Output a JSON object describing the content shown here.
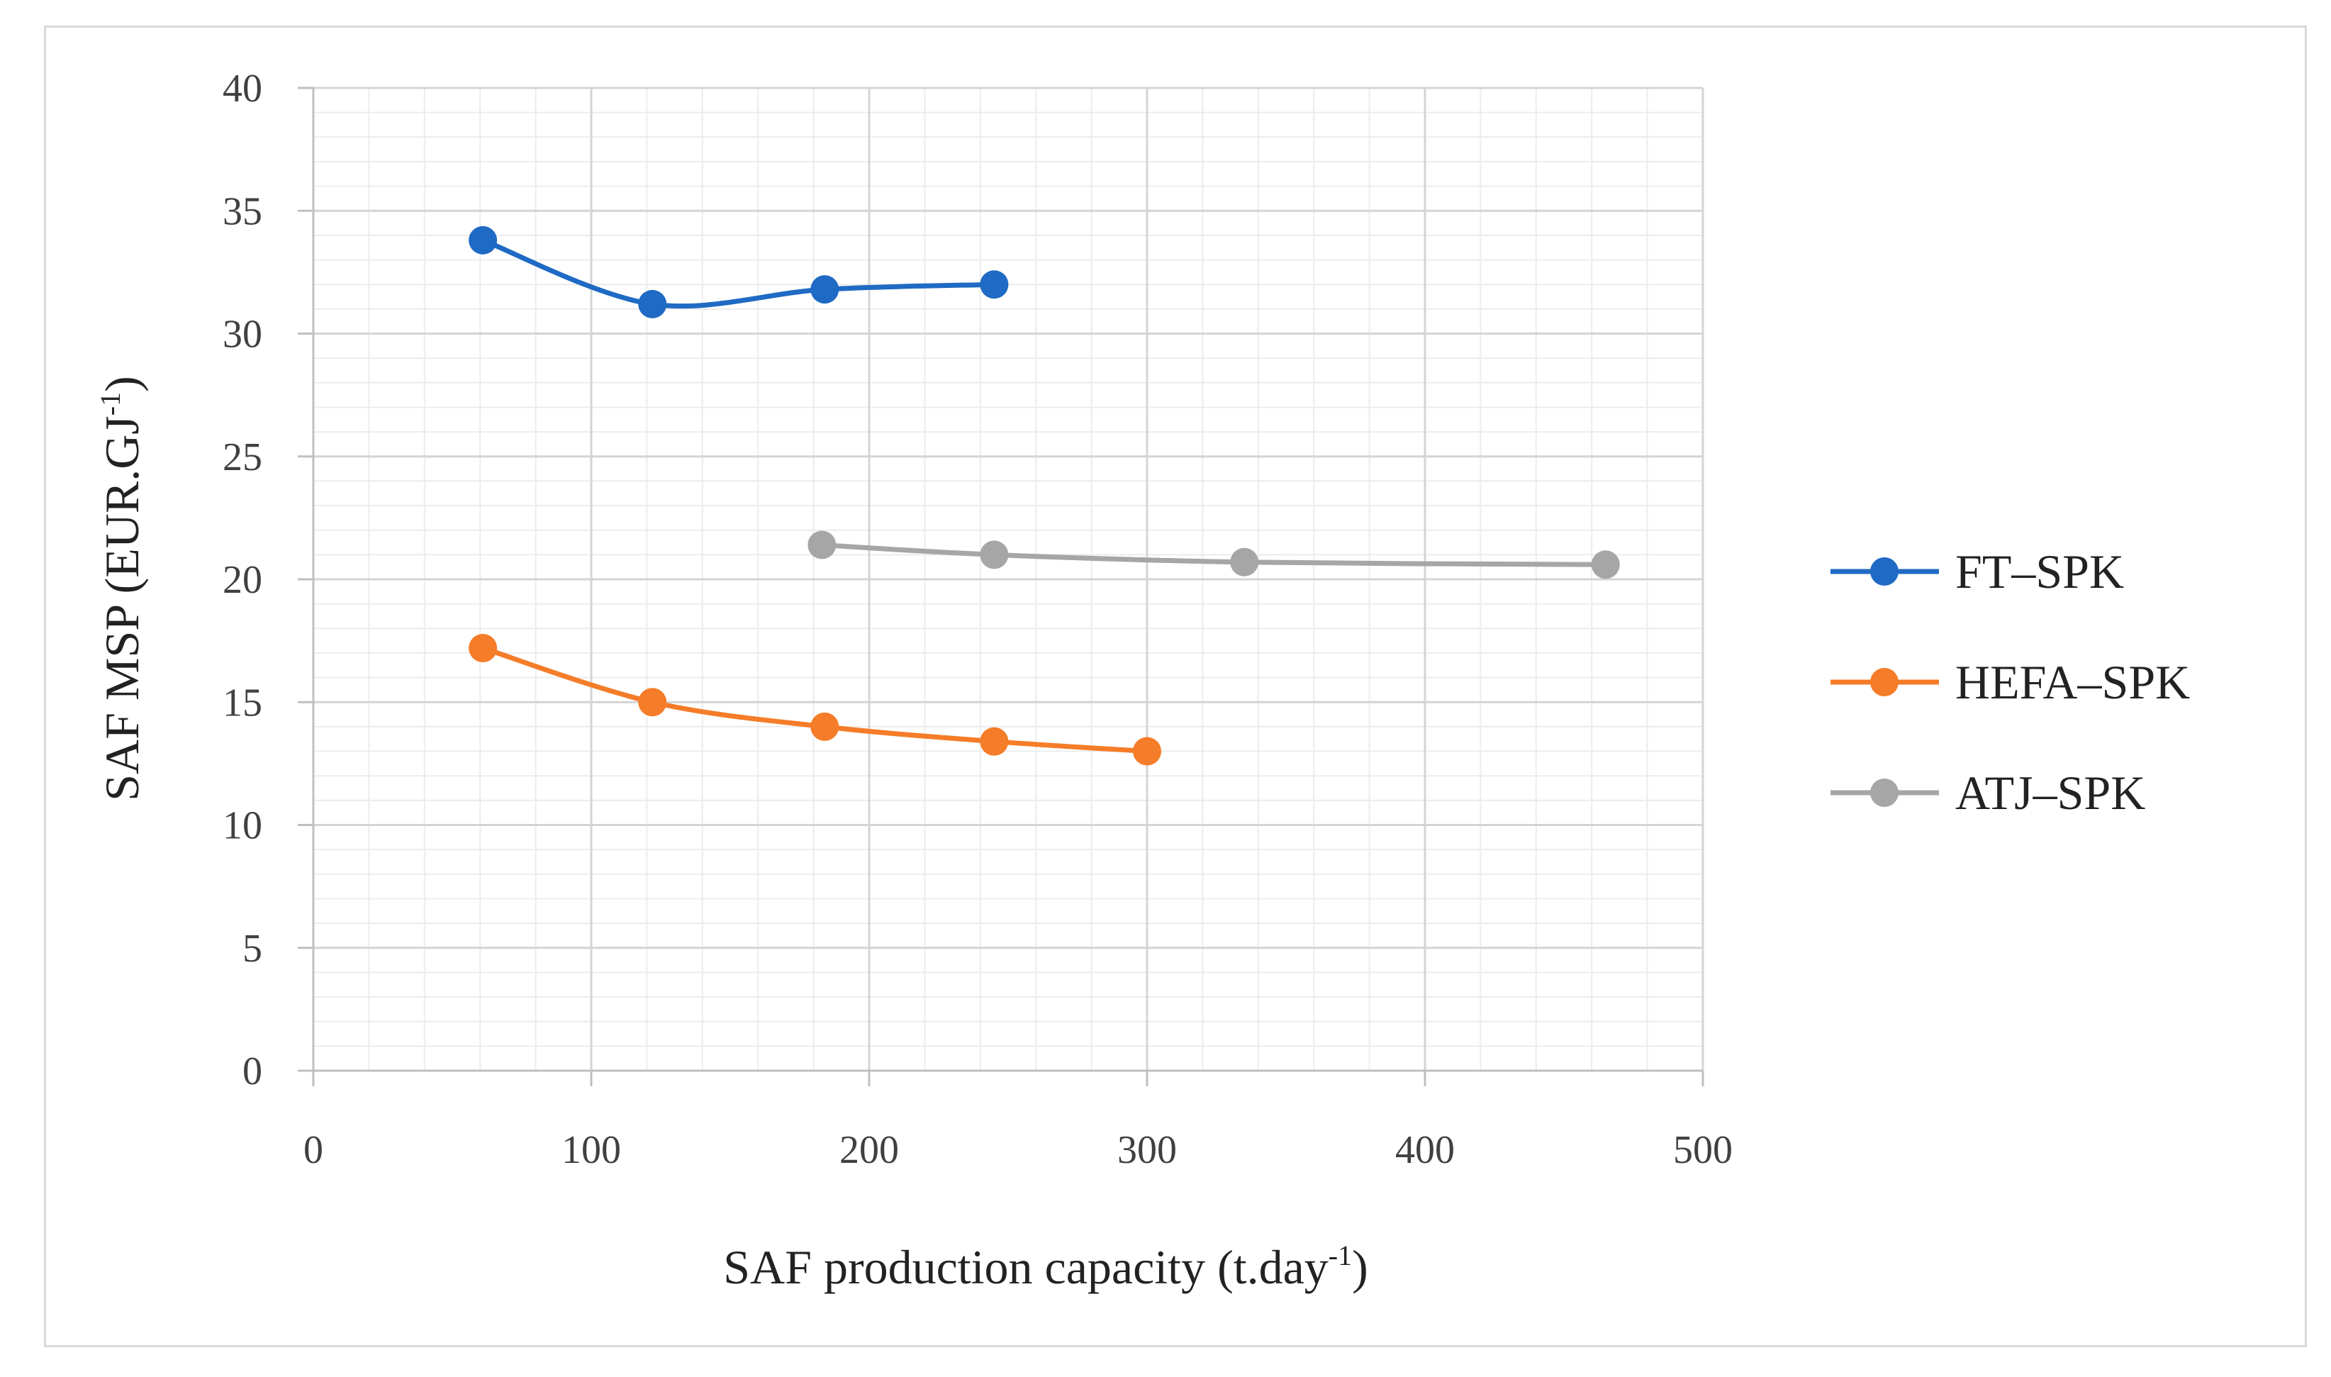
{
  "chart_data": {
    "type": "line",
    "title": "",
    "xlabel": "SAF production  capacity (t.day",
    "xlabel_sup": "-1",
    "xlabel_end": ")",
    "ylabel": "SAF MSP (EUR.GJ",
    "ylabel_sup": "-1",
    "ylabel_end": ")",
    "xlim": [
      0,
      500
    ],
    "ylim": [
      0,
      40
    ],
    "xticks": [
      0,
      100,
      200,
      300,
      400,
      500
    ],
    "yticks": [
      0,
      5,
      10,
      15,
      20,
      25,
      30,
      35,
      40
    ],
    "grid": true,
    "legend_position": "right",
    "series": [
      {
        "name": "FT–SPK",
        "color": "#1f6ac4",
        "x": [
          61,
          122,
          184,
          245
        ],
        "y": [
          33.8,
          31.2,
          31.8,
          32.0
        ]
      },
      {
        "name": "HEFA–SPK",
        "color": "#f57c28",
        "x": [
          61,
          122,
          184,
          245,
          300
        ],
        "y": [
          17.2,
          15.0,
          14.0,
          13.4,
          13.0
        ]
      },
      {
        "name": "ATJ–SPK",
        "color": "#a6a6a6",
        "x": [
          183,
          245,
          335,
          465
        ],
        "y": [
          21.4,
          21.0,
          20.7,
          20.6
        ]
      }
    ]
  }
}
